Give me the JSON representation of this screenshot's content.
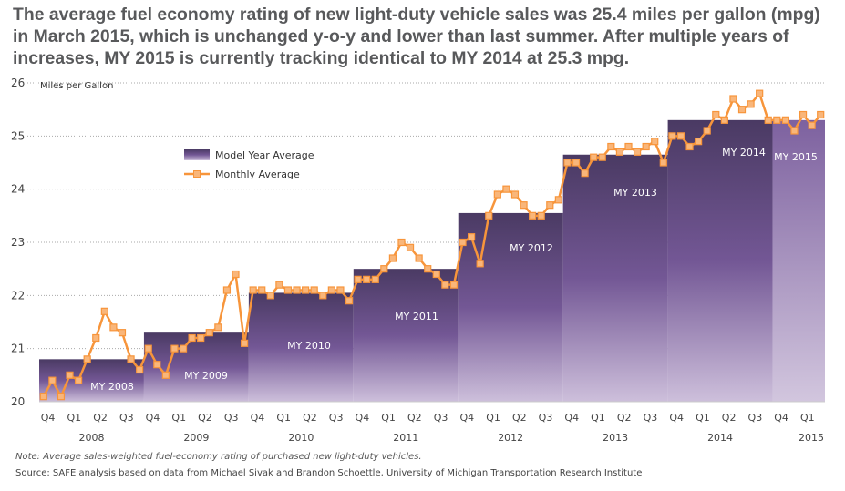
{
  "title": "The average fuel economy rating of new light-duty vehicle sales was 25.4 miles per gallon (mpg) in March 2015, which is unchanged y-o-y and lower than last summer. After multiple years of increases, MY 2015 is currently tracking identical to MY 2014 at 25.3 mpg.",
  "note": "Note: Average sales-weighted fuel-economy rating of purchased new light-duty vehicles.",
  "source": "Source: SAFE analysis based on data from Michael Sivak and Brandon Schoettle, University of Michigan Transportation Research Institute",
  "chart_data": {
    "type": "bar+line",
    "ylabel": "Miles per Gallon",
    "ylim": [
      20,
      26
    ],
    "yticks": [
      "20",
      "21",
      "22",
      "23",
      "24",
      "25",
      "26"
    ],
    "grid": "horizontal dotted",
    "legend_placement": "upper-left",
    "legend": [
      "Model Year Average",
      "Monthly Average"
    ],
    "colors": {
      "bar_top": "#4a3a63",
      "bar_mid": "#7a5c99",
      "bar_bottom": "#cdbfdb",
      "line": "#f7953b",
      "marker_fill": "#f9b67a"
    },
    "quarter_labels": [
      "Q4",
      "Q1",
      "Q2",
      "Q3",
      "Q4",
      "Q1",
      "Q2",
      "Q3",
      "Q4",
      "Q1",
      "Q2",
      "Q3",
      "Q4",
      "Q1",
      "Q2",
      "Q3",
      "Q4",
      "Q1",
      "Q2",
      "Q3",
      "Q4",
      "Q1",
      "Q2",
      "Q3",
      "Q4",
      "Q1",
      "Q2",
      "Q3",
      "Q4",
      "Q1"
    ],
    "model_years": [
      {
        "label": "MY 2008",
        "year": "2008",
        "value": 20.8
      },
      {
        "label": "MY 2009",
        "year": "2009",
        "value": 21.3
      },
      {
        "label": "MY 2010",
        "year": "2010",
        "value": 22.05
      },
      {
        "label": "MY 2011",
        "year": "2011",
        "value": 22.5
      },
      {
        "label": "MY 2012",
        "year": "2012",
        "value": 23.55
      },
      {
        "label": "MY 2013",
        "year": "2013",
        "value": 24.65
      },
      {
        "label": "MY 2014",
        "year": "2014",
        "value": 25.3
      },
      {
        "label": "MY 2015",
        "year": "2015",
        "value": 25.3
      }
    ],
    "monthly": [
      20.1,
      20.4,
      20.1,
      20.5,
      20.4,
      20.8,
      21.2,
      21.7,
      21.4,
      21.3,
      20.8,
      20.6,
      21.0,
      20.7,
      20.5,
      21.0,
      21.0,
      21.2,
      21.2,
      21.3,
      21.4,
      22.1,
      22.4,
      21.1,
      22.1,
      22.1,
      22.0,
      22.2,
      22.1,
      22.1,
      22.1,
      22.1,
      22.0,
      22.1,
      22.1,
      21.9,
      22.3,
      22.3,
      22.3,
      22.5,
      22.7,
      23.0,
      22.9,
      22.7,
      22.5,
      22.4,
      22.2,
      22.2,
      23.0,
      23.1,
      22.6,
      23.5,
      23.9,
      24.0,
      23.9,
      23.7,
      23.5,
      23.5,
      23.7,
      23.8,
      24.5,
      24.5,
      24.3,
      24.6,
      24.6,
      24.8,
      24.7,
      24.8,
      24.7,
      24.8,
      24.9,
      24.5,
      25.0,
      25.0,
      24.8,
      24.9,
      25.1,
      25.4,
      25.3,
      25.7,
      25.5,
      25.6,
      25.8,
      25.3,
      25.3,
      25.3,
      25.1,
      25.4,
      25.2,
      25.4
    ]
  }
}
